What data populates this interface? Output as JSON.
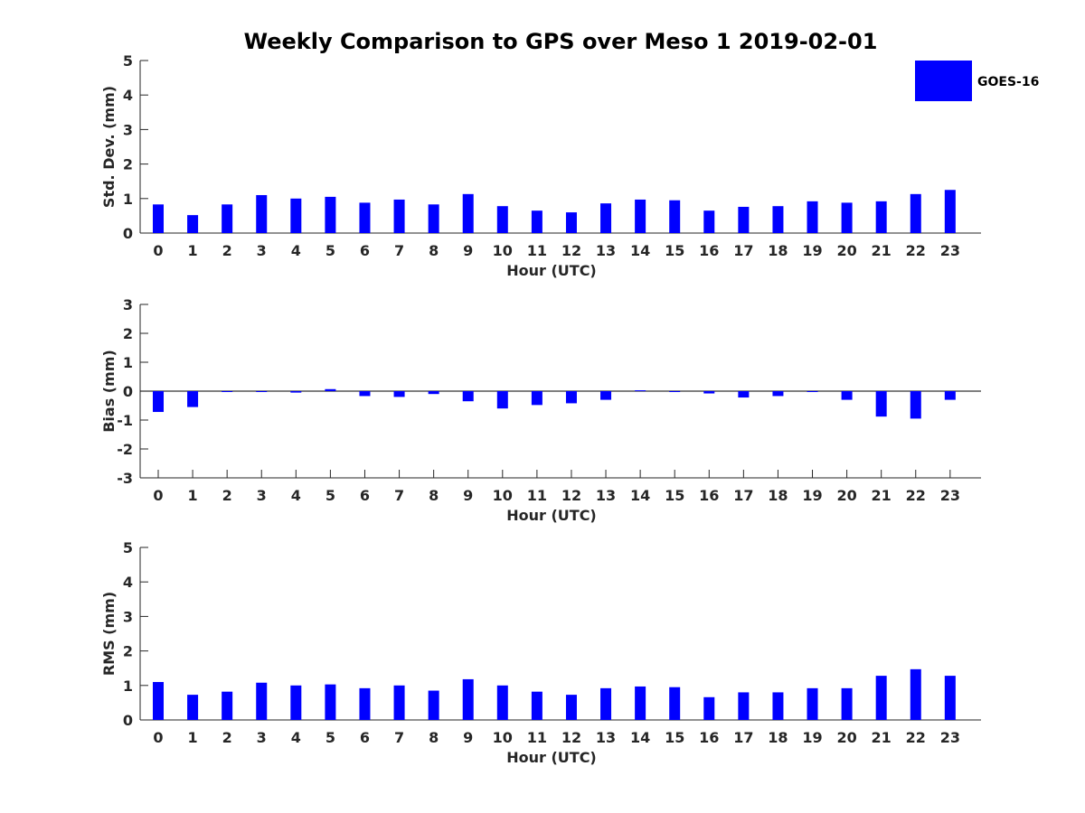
{
  "chart_data": {
    "title": "Weekly Comparison to GPS over Meso 1 2019-02-01",
    "legend": {
      "label": "GOES-16",
      "color": "#0000ff",
      "placement": "top-right"
    },
    "bar_color": "#0000ff",
    "panels": [
      {
        "type": "bar",
        "name": "std-dev",
        "ylabel": "Std. Dev. (mm)",
        "xlabel": "Hour (UTC)",
        "ylim": [
          0,
          5
        ],
        "yticks": [
          "0",
          "1",
          "2",
          "3",
          "4",
          "5"
        ],
        "categories": [
          "0",
          "1",
          "2",
          "3",
          "4",
          "5",
          "6",
          "7",
          "8",
          "9",
          "10",
          "11",
          "12",
          "13",
          "14",
          "15",
          "16",
          "17",
          "18",
          "19",
          "20",
          "21",
          "22",
          "23"
        ],
        "values": [
          0.83,
          0.52,
          0.83,
          1.1,
          1.0,
          1.05,
          0.88,
          0.97,
          0.83,
          1.13,
          0.78,
          0.65,
          0.6,
          0.86,
          0.97,
          0.95,
          0.65,
          0.76,
          0.78,
          0.92,
          0.88,
          0.92,
          1.13,
          1.25
        ]
      },
      {
        "type": "bar",
        "name": "bias",
        "ylabel": "Bias (mm)",
        "xlabel": "Hour (UTC)",
        "ylim": [
          -3,
          3
        ],
        "yticks": [
          "-3",
          "-2",
          "-1",
          "0",
          "1",
          "2",
          "3"
        ],
        "zero_line": true,
        "categories": [
          "0",
          "1",
          "2",
          "3",
          "4",
          "5",
          "6",
          "7",
          "8",
          "9",
          "10",
          "11",
          "12",
          "13",
          "14",
          "15",
          "16",
          "17",
          "18",
          "19",
          "20",
          "21",
          "22",
          "23"
        ],
        "values": [
          -0.72,
          -0.55,
          -0.02,
          -0.02,
          -0.05,
          0.07,
          -0.17,
          -0.2,
          -0.1,
          -0.35,
          -0.6,
          -0.48,
          -0.42,
          -0.3,
          0.03,
          -0.02,
          -0.08,
          -0.22,
          -0.17,
          -0.02,
          -0.3,
          -0.88,
          -0.95,
          -0.3
        ]
      },
      {
        "type": "bar",
        "name": "rms",
        "ylabel": "RMS (mm)",
        "xlabel": "Hour (UTC)",
        "ylim": [
          0,
          5
        ],
        "yticks": [
          "0",
          "1",
          "2",
          "3",
          "4",
          "5"
        ],
        "categories": [
          "0",
          "1",
          "2",
          "3",
          "4",
          "5",
          "6",
          "7",
          "8",
          "9",
          "10",
          "11",
          "12",
          "13",
          "14",
          "15",
          "16",
          "17",
          "18",
          "19",
          "20",
          "21",
          "22",
          "23"
        ],
        "values": [
          1.1,
          0.73,
          0.82,
          1.08,
          1.0,
          1.03,
          0.92,
          1.0,
          0.85,
          1.18,
          1.0,
          0.82,
          0.73,
          0.92,
          0.97,
          0.95,
          0.66,
          0.8,
          0.8,
          0.92,
          0.92,
          1.28,
          1.47,
          1.28
        ]
      }
    ]
  }
}
